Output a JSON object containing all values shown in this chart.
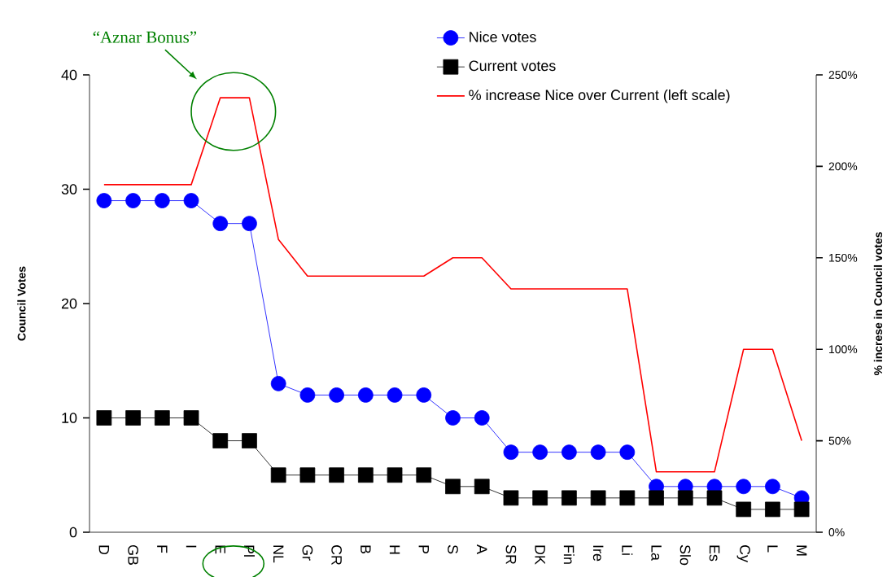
{
  "chart_data": {
    "type": "line",
    "categories": [
      "D",
      "GB",
      "F",
      "I",
      "E",
      "Pl",
      "NL",
      "Gr",
      "CR",
      "B",
      "H",
      "P",
      "S",
      "A",
      "SR",
      "DK",
      "Fin",
      "Ire",
      "Li",
      "La",
      "Slo",
      "Es",
      "Cy",
      "L",
      "M"
    ],
    "series": [
      {
        "name": "Nice votes",
        "color": "#0000ff",
        "marker": "circle",
        "values": [
          29,
          29,
          29,
          29,
          27,
          27,
          13,
          12,
          12,
          12,
          12,
          12,
          10,
          10,
          7,
          7,
          7,
          7,
          7,
          4,
          4,
          4,
          4,
          4,
          3
        ]
      },
      {
        "name": "Current votes",
        "color": "#000000",
        "marker": "square",
        "values": [
          10,
          10,
          10,
          10,
          8,
          8,
          5,
          5,
          5,
          5,
          5,
          5,
          4,
          4,
          3,
          3,
          3,
          3,
          3,
          3,
          3,
          3,
          2,
          2,
          2
        ]
      },
      {
        "name": "% increase Nice over Current (left scale)",
        "color": "#ff0000",
        "marker": "none",
        "axis": "y2",
        "values": [
          190,
          190,
          190,
          190,
          237.5,
          237.5,
          160,
          140,
          140,
          140,
          140,
          140,
          150,
          150,
          133,
          133,
          133,
          133,
          133,
          33,
          33,
          33,
          100,
          100,
          50
        ]
      }
    ],
    "ylabel": "Council Votes",
    "y2label": "% increse in Council votes",
    "ylim": [
      0,
      40
    ],
    "yticks": [
      0,
      10,
      20,
      30,
      40
    ],
    "y2lim": [
      0,
      250
    ],
    "y2ticks": [
      {
        "value": 0,
        "label": "0%"
      },
      {
        "value": 50,
        "label": "50%"
      },
      {
        "value": 100,
        "label": "100%"
      },
      {
        "value": 150,
        "label": "150%"
      },
      {
        "value": 200,
        "label": "200%"
      },
      {
        "value": 250,
        "label": "250%"
      }
    ],
    "annotations": [
      "“Aznar Bonus”"
    ],
    "legend": "top right",
    "grid": false,
    "line_style": "solid"
  }
}
